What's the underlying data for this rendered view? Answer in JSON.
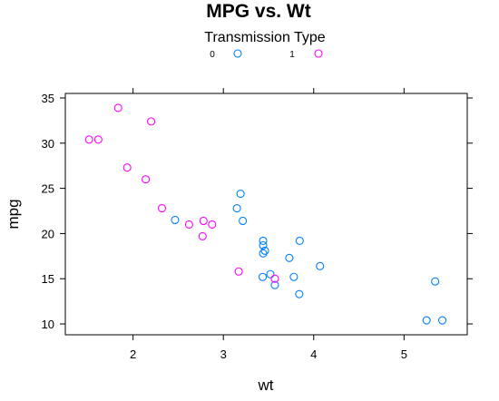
{
  "chart_data": {
    "type": "scatter",
    "title": "MPG vs. Wt",
    "xlabel": "wt",
    "ylabel": "mpg",
    "xlim": [
      1.25,
      5.7
    ],
    "ylim": [
      8.8,
      35.5
    ],
    "xticks": [
      2,
      3,
      4,
      5
    ],
    "yticks": [
      10,
      15,
      20,
      25,
      30,
      35
    ],
    "grid": false,
    "legend": {
      "title": "Transmission Type",
      "placement": "top",
      "entries": [
        {
          "label": "0",
          "color": "#0080ff"
        },
        {
          "label": "1",
          "color": "#ff00ff"
        }
      ]
    },
    "series": [
      {
        "name": "0",
        "color": "#0080ff",
        "points": [
          [
            3.215,
            21.4
          ],
          [
            3.44,
            18.7
          ],
          [
            3.46,
            18.1
          ],
          [
            3.57,
            14.3
          ],
          [
            3.19,
            24.4
          ],
          [
            3.15,
            22.8
          ],
          [
            3.44,
            19.2
          ],
          [
            3.44,
            17.8
          ],
          [
            4.07,
            16.4
          ],
          [
            3.73,
            17.3
          ],
          [
            3.78,
            15.2
          ],
          [
            5.25,
            10.4
          ],
          [
            5.424,
            10.4
          ],
          [
            5.345,
            14.7
          ],
          [
            2.465,
            21.5
          ],
          [
            3.52,
            15.5
          ],
          [
            3.435,
            15.2
          ],
          [
            3.84,
            13.3
          ],
          [
            3.845,
            19.2
          ]
        ]
      },
      {
        "name": "1",
        "color": "#ff00ff",
        "points": [
          [
            2.62,
            21.0
          ],
          [
            2.875,
            21.0
          ],
          [
            2.32,
            22.8
          ],
          [
            2.2,
            32.4
          ],
          [
            1.615,
            30.4
          ],
          [
            1.835,
            33.9
          ],
          [
            1.935,
            27.3
          ],
          [
            2.14,
            26.0
          ],
          [
            1.513,
            30.4
          ],
          [
            3.17,
            15.8
          ],
          [
            2.77,
            19.7
          ],
          [
            2.78,
            21.4
          ],
          [
            3.57,
            15.0
          ]
        ]
      }
    ]
  }
}
